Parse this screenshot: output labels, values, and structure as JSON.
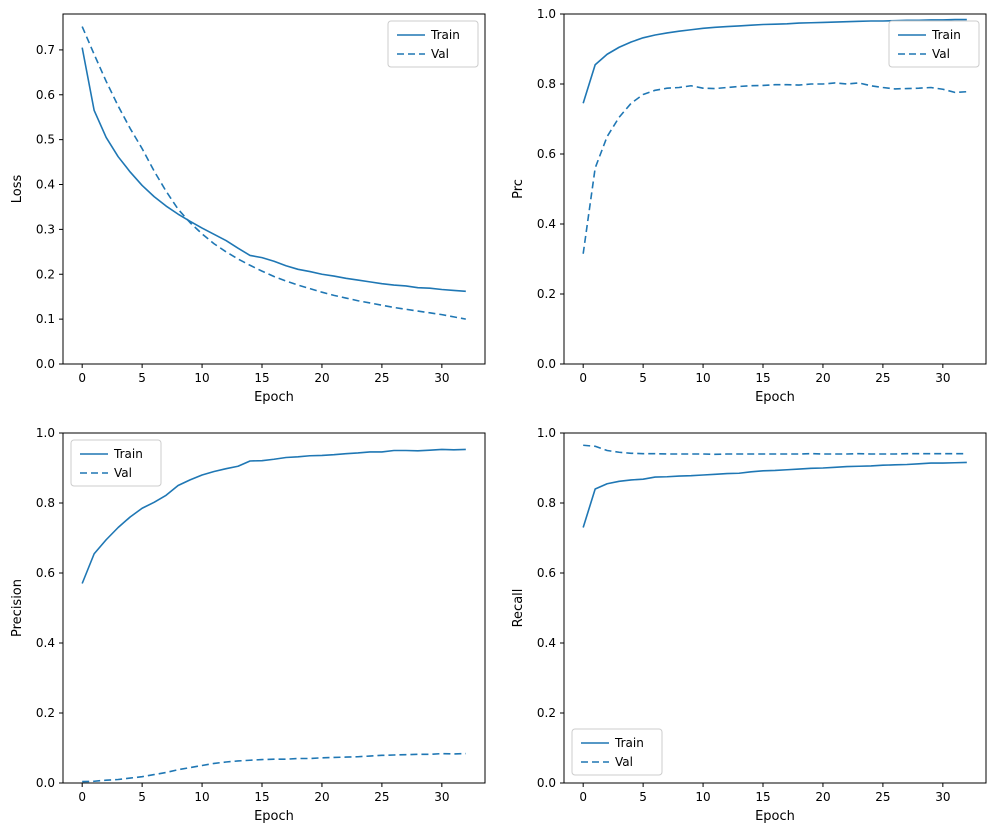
{
  "figure": {
    "background": "#ffffff",
    "accent_color": "#1f77b4",
    "legend_labels": [
      "Train",
      "Val"
    ]
  },
  "epochs": [
    0,
    1,
    2,
    3,
    4,
    5,
    6,
    7,
    8,
    9,
    10,
    11,
    12,
    13,
    14,
    15,
    16,
    17,
    18,
    19,
    20,
    21,
    22,
    23,
    24,
    25,
    26,
    27,
    28,
    29,
    30,
    31,
    32
  ],
  "chart_data": [
    {
      "id": "loss",
      "type": "line",
      "title": "",
      "xlabel": "Epoch",
      "ylabel": "Loss",
      "xlim": [
        -1.6,
        33.6
      ],
      "ylim": [
        0,
        0.78
      ],
      "grid": false,
      "xticks": [
        0,
        5,
        10,
        15,
        20,
        25,
        30
      ],
      "xtick_labels": [
        "0",
        "5",
        "10",
        "15",
        "20",
        "25",
        "30"
      ],
      "yticks": [
        0.0,
        0.1,
        0.2,
        0.3,
        0.4,
        0.5,
        0.6,
        0.7
      ],
      "ytick_labels": [
        "0.0",
        "0.1",
        "0.2",
        "0.3",
        "0.4",
        "0.5",
        "0.6",
        "0.7"
      ],
      "legend": {
        "loc": "upper right",
        "entries": [
          "Train",
          "Val"
        ]
      },
      "series": [
        {
          "name": "Train",
          "line": "solid",
          "color": "#1f77b4",
          "values": [
            0.705,
            0.565,
            0.505,
            0.462,
            0.428,
            0.398,
            0.373,
            0.352,
            0.334,
            0.318,
            0.303,
            0.289,
            0.275,
            0.258,
            0.242,
            0.237,
            0.229,
            0.219,
            0.211,
            0.206,
            0.2,
            0.196,
            0.191,
            0.187,
            0.183,
            0.179,
            0.176,
            0.174,
            0.17,
            0.169,
            0.166,
            0.164,
            0.162
          ]
        },
        {
          "name": "Val",
          "line": "dashed",
          "color": "#1f77b4",
          "values": [
            0.752,
            0.69,
            0.63,
            0.575,
            0.525,
            0.48,
            0.43,
            0.385,
            0.345,
            0.315,
            0.29,
            0.268,
            0.25,
            0.234,
            0.22,
            0.207,
            0.195,
            0.185,
            0.176,
            0.168,
            0.16,
            0.153,
            0.147,
            0.141,
            0.136,
            0.131,
            0.126,
            0.122,
            0.118,
            0.114,
            0.11,
            0.105,
            0.1
          ]
        }
      ]
    },
    {
      "id": "prc",
      "type": "line",
      "title": "",
      "xlabel": "Epoch",
      "ylabel": "Prc",
      "xlim": [
        -1.6,
        33.6
      ],
      "ylim": [
        0,
        1.0
      ],
      "grid": false,
      "xticks": [
        0,
        5,
        10,
        15,
        20,
        25,
        30
      ],
      "xtick_labels": [
        "0",
        "5",
        "10",
        "15",
        "20",
        "25",
        "30"
      ],
      "yticks": [
        0.0,
        0.2,
        0.4,
        0.6,
        0.8,
        1.0
      ],
      "ytick_labels": [
        "0.0",
        "0.2",
        "0.4",
        "0.6",
        "0.8",
        "1.0"
      ],
      "legend": {
        "loc": "upper right",
        "entries": [
          "Train",
          "Val"
        ]
      },
      "series": [
        {
          "name": "Train",
          "line": "solid",
          "color": "#1f77b4",
          "values": [
            0.745,
            0.855,
            0.885,
            0.905,
            0.92,
            0.932,
            0.94,
            0.946,
            0.951,
            0.955,
            0.959,
            0.962,
            0.964,
            0.966,
            0.968,
            0.97,
            0.971,
            0.972,
            0.974,
            0.975,
            0.976,
            0.977,
            0.978,
            0.979,
            0.98,
            0.98,
            0.981,
            0.982,
            0.982,
            0.983,
            0.983,
            0.984,
            0.984
          ]
        },
        {
          "name": "Val",
          "line": "dashed",
          "color": "#1f77b4",
          "values": [
            0.315,
            0.56,
            0.65,
            0.705,
            0.745,
            0.77,
            0.782,
            0.788,
            0.79,
            0.795,
            0.788,
            0.787,
            0.79,
            0.793,
            0.795,
            0.796,
            0.798,
            0.798,
            0.797,
            0.8,
            0.8,
            0.803,
            0.8,
            0.803,
            0.795,
            0.79,
            0.786,
            0.787,
            0.788,
            0.79,
            0.785,
            0.776,
            0.778
          ]
        }
      ]
    },
    {
      "id": "precision",
      "type": "line",
      "title": "",
      "xlabel": "Epoch",
      "ylabel": "Precision",
      "xlim": [
        -1.6,
        33.6
      ],
      "ylim": [
        0,
        1.0
      ],
      "grid": false,
      "xticks": [
        0,
        5,
        10,
        15,
        20,
        25,
        30
      ],
      "xtick_labels": [
        "0",
        "5",
        "10",
        "15",
        "20",
        "25",
        "30"
      ],
      "yticks": [
        0.0,
        0.2,
        0.4,
        0.6,
        0.8,
        1.0
      ],
      "ytick_labels": [
        "0.0",
        "0.2",
        "0.4",
        "0.6",
        "0.8",
        "1.0"
      ],
      "legend": {
        "loc": "upper left",
        "entries": [
          "Train",
          "Val"
        ]
      },
      "series": [
        {
          "name": "Train",
          "line": "solid",
          "color": "#1f77b4",
          "values": [
            0.57,
            0.655,
            0.695,
            0.73,
            0.76,
            0.785,
            0.802,
            0.822,
            0.85,
            0.866,
            0.88,
            0.89,
            0.898,
            0.905,
            0.92,
            0.921,
            0.925,
            0.93,
            0.932,
            0.935,
            0.936,
            0.938,
            0.941,
            0.943,
            0.946,
            0.946,
            0.95,
            0.95,
            0.949,
            0.951,
            0.953,
            0.952,
            0.953
          ]
        },
        {
          "name": "Val",
          "line": "dashed",
          "color": "#1f77b4",
          "values": [
            0.004,
            0.005,
            0.008,
            0.01,
            0.014,
            0.018,
            0.024,
            0.03,
            0.038,
            0.044,
            0.05,
            0.056,
            0.06,
            0.063,
            0.065,
            0.067,
            0.068,
            0.068,
            0.07,
            0.07,
            0.072,
            0.073,
            0.074,
            0.075,
            0.077,
            0.079,
            0.08,
            0.081,
            0.082,
            0.082,
            0.084,
            0.083,
            0.084
          ]
        }
      ]
    },
    {
      "id": "recall",
      "type": "line",
      "title": "",
      "xlabel": "Epoch",
      "ylabel": "Recall",
      "xlim": [
        -1.6,
        33.6
      ],
      "ylim": [
        0,
        1.0
      ],
      "grid": false,
      "xticks": [
        0,
        5,
        10,
        15,
        20,
        25,
        30
      ],
      "xtick_labels": [
        "0",
        "5",
        "10",
        "15",
        "20",
        "25",
        "30"
      ],
      "yticks": [
        0.0,
        0.2,
        0.4,
        0.6,
        0.8,
        1.0
      ],
      "ytick_labels": [
        "0.0",
        "0.2",
        "0.4",
        "0.6",
        "0.8",
        "1.0"
      ],
      "legend": {
        "loc": "lower left",
        "entries": [
          "Train",
          "Val"
        ]
      },
      "series": [
        {
          "name": "Train",
          "line": "solid",
          "color": "#1f77b4",
          "values": [
            0.73,
            0.84,
            0.855,
            0.862,
            0.866,
            0.868,
            0.874,
            0.875,
            0.877,
            0.878,
            0.88,
            0.882,
            0.884,
            0.885,
            0.889,
            0.892,
            0.893,
            0.895,
            0.897,
            0.899,
            0.9,
            0.902,
            0.904,
            0.905,
            0.906,
            0.908,
            0.909,
            0.91,
            0.912,
            0.914,
            0.914,
            0.915,
            0.916
          ]
        },
        {
          "name": "Val",
          "line": "dashed",
          "color": "#1f77b4",
          "values": [
            0.965,
            0.962,
            0.95,
            0.945,
            0.942,
            0.941,
            0.941,
            0.94,
            0.94,
            0.94,
            0.94,
            0.939,
            0.94,
            0.94,
            0.94,
            0.94,
            0.94,
            0.94,
            0.94,
            0.941,
            0.94,
            0.94,
            0.94,
            0.941,
            0.94,
            0.94,
            0.94,
            0.941,
            0.941,
            0.941,
            0.941,
            0.941,
            0.941
          ]
        }
      ]
    }
  ]
}
